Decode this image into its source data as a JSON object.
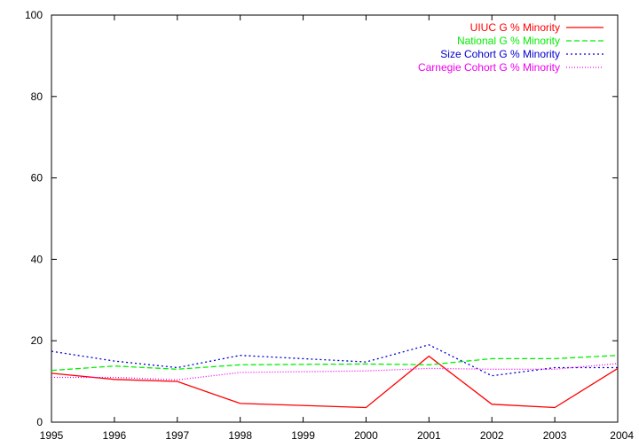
{
  "chart_data": {
    "type": "line",
    "title": "",
    "xlabel": "",
    "ylabel": "",
    "x": [
      1995,
      1996,
      1997,
      1998,
      1999,
      2000,
      2001,
      2002,
      2003,
      2004
    ],
    "xlim": [
      1995,
      2004
    ],
    "ylim": [
      0,
      100
    ],
    "x_ticks": [
      "1995",
      "1996",
      "1997",
      "1998",
      "1999",
      "2000",
      "2001",
      "2002",
      "2003",
      "2004"
    ],
    "y_ticks": [
      "0",
      "20",
      "40",
      "60",
      "80",
      "100"
    ],
    "grid": false,
    "legend_position": "top-right",
    "series": [
      {
        "name": "UIUC G % Minority",
        "color": "#ff0000",
        "dash": "solid",
        "x": [
          1995,
          1996,
          1997,
          1998,
          2000,
          2001,
          2002,
          2003,
          2004
        ],
        "values": [
          12.0,
          10.5,
          10.0,
          4.6,
          3.6,
          16.2,
          4.4,
          3.6,
          13.2
        ]
      },
      {
        "name": "National G % Minority",
        "color": "#00ee00",
        "dash": "dashed",
        "x": [
          1995,
          1996,
          1997,
          1998,
          2000,
          2001,
          2002,
          2003,
          2004
        ],
        "values": [
          12.7,
          13.8,
          13.0,
          14.1,
          14.3,
          14.1,
          15.6,
          15.6,
          16.4
        ]
      },
      {
        "name": "Size Cohort G % Minority",
        "color": "#0000cc",
        "dash": "dotted-short",
        "x": [
          1995,
          1996,
          1997,
          1998,
          2000,
          2001,
          2002,
          2003,
          2004
        ],
        "values": [
          17.4,
          15.0,
          13.4,
          16.4,
          14.8,
          19.0,
          11.4,
          13.4,
          13.4
        ]
      },
      {
        "name": "Carnegie Cohort G % Minority",
        "color": "#ee00ee",
        "dash": "dotted",
        "x": [
          1995,
          1996,
          1997,
          1998,
          2000,
          2001,
          2002,
          2003,
          2004
        ],
        "values": [
          11.0,
          11.0,
          10.4,
          12.2,
          12.6,
          13.2,
          13.0,
          13.0,
          14.4
        ]
      }
    ]
  }
}
